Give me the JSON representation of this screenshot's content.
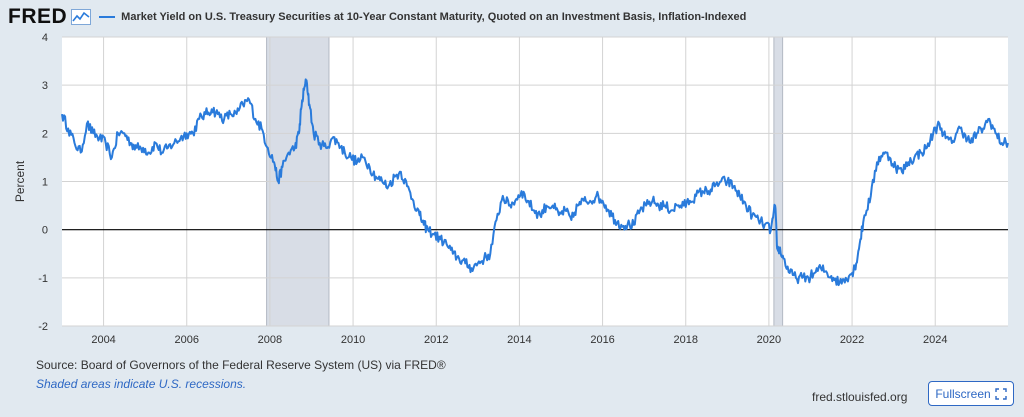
{
  "brand": {
    "logo_text": "FRED",
    "logo_icon": "line-chart-icon"
  },
  "site": "fred.stlouisfed.org",
  "buttons": {
    "fullscreen_label": "Fullscreen",
    "fullscreen_icon": "expand-icon"
  },
  "footer": {
    "source": "Source: Board of Governors of the Federal Reserve System (US) via FRED®",
    "note": "Shaded areas indicate U.S. recessions."
  },
  "colors": {
    "series": "#2a7bdb",
    "recession": "#d8dde6",
    "background": "#e1e9f0",
    "plot": "#ffffff",
    "grid": "#d3d3d3",
    "zero_line": "#000000",
    "link": "#2e68c4"
  },
  "chart_data": {
    "type": "line",
    "title": "Market Yield on U.S. Treasury Securities at 10-Year Constant Maturity, Quoted on an Investment Basis, Inflation-Indexed",
    "xlabel": "",
    "ylabel": "Percent",
    "xlim": [
      2003.0,
      2025.75
    ],
    "ylim": [
      -2,
      4
    ],
    "yticks": [
      4,
      3,
      2,
      1,
      0,
      -1,
      -2
    ],
    "xticks": [
      2004,
      2006,
      2008,
      2010,
      2012,
      2014,
      2016,
      2018,
      2020,
      2022,
      2024
    ],
    "grid": true,
    "zero_line": 0,
    "legend": "top-left",
    "recessions": [
      [
        2007.92,
        2009.42
      ],
      [
        2020.12,
        2020.33
      ]
    ],
    "series": [
      {
        "name": "Market Yield on U.S. Treasury Securities at 10-Year Constant Maturity, Quoted on an Investment Basis, Inflation-Indexed",
        "x": [
          2003.0,
          2003.15,
          2003.3,
          2003.45,
          2003.6,
          2003.75,
          2003.9,
          2004.05,
          2004.2,
          2004.35,
          2004.5,
          2004.65,
          2004.8,
          2004.95,
          2005.1,
          2005.25,
          2005.4,
          2005.55,
          2005.7,
          2005.85,
          2006.0,
          2006.15,
          2006.3,
          2006.45,
          2006.6,
          2006.75,
          2006.9,
          2007.05,
          2007.2,
          2007.35,
          2007.5,
          2007.65,
          2007.8,
          2007.95,
          2008.1,
          2008.2,
          2008.3,
          2008.45,
          2008.6,
          2008.7,
          2008.75,
          2008.82,
          2008.88,
          2008.95,
          2009.05,
          2009.2,
          2009.35,
          2009.5,
          2009.65,
          2009.8,
          2009.95,
          2010.1,
          2010.25,
          2010.4,
          2010.55,
          2010.7,
          2010.85,
          2011.0,
          2011.15,
          2011.3,
          2011.45,
          2011.6,
          2011.7,
          2011.8,
          2011.95,
          2012.1,
          2012.25,
          2012.4,
          2012.55,
          2012.7,
          2012.85,
          2013.0,
          2013.15,
          2013.3,
          2013.45,
          2013.6,
          2013.75,
          2013.9,
          2014.05,
          2014.2,
          2014.35,
          2014.5,
          2014.65,
          2014.8,
          2014.95,
          2015.1,
          2015.25,
          2015.4,
          2015.55,
          2015.7,
          2015.85,
          2016.0,
          2016.15,
          2016.3,
          2016.45,
          2016.6,
          2016.75,
          2016.9,
          2017.05,
          2017.2,
          2017.35,
          2017.5,
          2017.65,
          2017.8,
          2017.95,
          2018.1,
          2018.25,
          2018.4,
          2018.55,
          2018.7,
          2018.85,
          2019.0,
          2019.15,
          2019.3,
          2019.45,
          2019.6,
          2019.75,
          2019.9,
          2020.05,
          2020.15,
          2020.2,
          2020.25,
          2020.35,
          2020.5,
          2020.65,
          2020.8,
          2020.95,
          2021.1,
          2021.25,
          2021.4,
          2021.55,
          2021.7,
          2021.85,
          2022.0,
          2022.1,
          2022.2,
          2022.3,
          2022.45,
          2022.6,
          2022.75,
          2022.9,
          2023.05,
          2023.2,
          2023.35,
          2023.5,
          2023.65,
          2023.8,
          2023.95,
          2024.1,
          2024.25,
          2024.4,
          2024.55,
          2024.7,
          2024.85,
          2025.0,
          2025.15,
          2025.3,
          2025.45,
          2025.6,
          2025.75
        ],
        "values": [
          2.4,
          2.1,
          1.8,
          1.6,
          2.2,
          2.0,
          1.9,
          1.8,
          1.5,
          2.0,
          2.0,
          1.8,
          1.7,
          1.7,
          1.6,
          1.8,
          1.6,
          1.7,
          1.8,
          1.9,
          2.0,
          2.0,
          2.3,
          2.4,
          2.5,
          2.4,
          2.3,
          2.4,
          2.4,
          2.6,
          2.7,
          2.3,
          2.1,
          1.7,
          1.4,
          1.0,
          1.3,
          1.6,
          1.7,
          2.0,
          2.5,
          2.9,
          3.1,
          2.6,
          2.0,
          1.8,
          1.7,
          1.9,
          1.8,
          1.6,
          1.5,
          1.4,
          1.5,
          1.3,
          1.1,
          1.0,
          0.9,
          1.1,
          1.2,
          0.9,
          0.6,
          0.3,
          0.1,
          0.0,
          -0.1,
          -0.2,
          -0.3,
          -0.5,
          -0.6,
          -0.7,
          -0.8,
          -0.7,
          -0.6,
          -0.5,
          0.2,
          0.7,
          0.5,
          0.6,
          0.8,
          0.6,
          0.4,
          0.3,
          0.5,
          0.5,
          0.3,
          0.4,
          0.2,
          0.5,
          0.6,
          0.6,
          0.7,
          0.6,
          0.4,
          0.2,
          0.1,
          0.1,
          0.1,
          0.4,
          0.5,
          0.6,
          0.5,
          0.5,
          0.4,
          0.5,
          0.5,
          0.6,
          0.7,
          0.8,
          0.8,
          0.9,
          1.0,
          1.0,
          0.9,
          0.7,
          0.5,
          0.3,
          0.2,
          0.1,
          0.0,
          0.5,
          -0.4,
          -0.4,
          -0.6,
          -0.9,
          -1.0,
          -1.0,
          -1.0,
          -0.9,
          -0.8,
          -0.9,
          -1.0,
          -1.1,
          -1.0,
          -0.9,
          -0.7,
          -0.2,
          0.3,
          0.7,
          1.4,
          1.6,
          1.5,
          1.3,
          1.2,
          1.4,
          1.5,
          1.6,
          1.7,
          2.0,
          2.2,
          1.9,
          1.8,
          2.1,
          2.0,
          1.8,
          2.0,
          2.1,
          2.3,
          2.0,
          1.8,
          1.8
        ]
      }
    ]
  }
}
